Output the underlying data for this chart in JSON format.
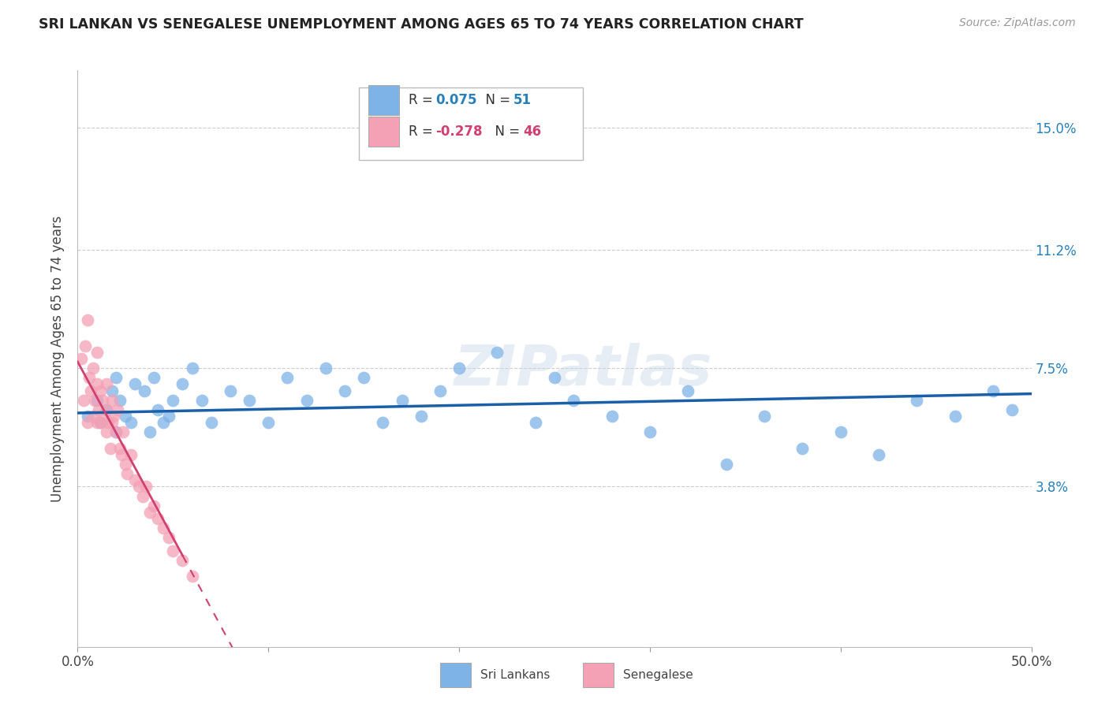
{
  "title": "SRI LANKAN VS SENEGALESE UNEMPLOYMENT AMONG AGES 65 TO 74 YEARS CORRELATION CHART",
  "source": "Source: ZipAtlas.com",
  "ylabel": "Unemployment Among Ages 65 to 74 years",
  "ytick_labels": [
    "15.0%",
    "11.2%",
    "7.5%",
    "3.8%"
  ],
  "ytick_values": [
    0.15,
    0.112,
    0.075,
    0.038
  ],
  "xlim": [
    0.0,
    0.5
  ],
  "ylim": [
    -0.012,
    0.168
  ],
  "background_color": "#ffffff",
  "grid_color": "#cccccc",
  "watermark": "ZIPatlas",
  "sri_lanka_color": "#7eb3e8",
  "senegal_color": "#f4a0b5",
  "sri_lanka_line_color": "#1a5fa8",
  "senegal_line_color": "#d04070",
  "legend_R_sri": "0.075",
  "legend_N_sri": "51",
  "legend_R_sen": "-0.278",
  "legend_N_sen": "46",
  "sri_lanka_x": [
    0.005,
    0.01,
    0.012,
    0.015,
    0.018,
    0.02,
    0.02,
    0.022,
    0.025,
    0.028,
    0.03,
    0.035,
    0.038,
    0.04,
    0.042,
    0.045,
    0.048,
    0.05,
    0.055,
    0.06,
    0.065,
    0.07,
    0.08,
    0.09,
    0.1,
    0.11,
    0.12,
    0.13,
    0.14,
    0.15,
    0.16,
    0.17,
    0.18,
    0.19,
    0.2,
    0.22,
    0.24,
    0.25,
    0.26,
    0.28,
    0.3,
    0.32,
    0.34,
    0.36,
    0.38,
    0.4,
    0.42,
    0.44,
    0.46,
    0.48,
    0.49
  ],
  "sri_lanka_y": [
    0.06,
    0.065,
    0.058,
    0.062,
    0.068,
    0.055,
    0.072,
    0.065,
    0.06,
    0.058,
    0.07,
    0.068,
    0.055,
    0.072,
    0.062,
    0.058,
    0.06,
    0.065,
    0.07,
    0.075,
    0.065,
    0.058,
    0.068,
    0.065,
    0.058,
    0.072,
    0.065,
    0.075,
    0.068,
    0.072,
    0.058,
    0.065,
    0.06,
    0.068,
    0.075,
    0.08,
    0.058,
    0.072,
    0.065,
    0.06,
    0.055,
    0.068,
    0.045,
    0.06,
    0.05,
    0.055,
    0.048,
    0.065,
    0.06,
    0.068,
    0.062
  ],
  "senegal_x": [
    0.002,
    0.003,
    0.004,
    0.005,
    0.005,
    0.006,
    0.007,
    0.008,
    0.008,
    0.009,
    0.01,
    0.01,
    0.01,
    0.011,
    0.012,
    0.012,
    0.013,
    0.014,
    0.015,
    0.015,
    0.015,
    0.016,
    0.017,
    0.018,
    0.018,
    0.019,
    0.02,
    0.021,
    0.022,
    0.023,
    0.024,
    0.025,
    0.026,
    0.028,
    0.03,
    0.032,
    0.034,
    0.036,
    0.038,
    0.04,
    0.042,
    0.045,
    0.048,
    0.05,
    0.055,
    0.06
  ],
  "senegal_y": [
    0.078,
    0.065,
    0.082,
    0.058,
    0.09,
    0.072,
    0.068,
    0.06,
    0.075,
    0.065,
    0.07,
    0.058,
    0.08,
    0.062,
    0.068,
    0.058,
    0.065,
    0.06,
    0.055,
    0.07,
    0.062,
    0.058,
    0.05,
    0.058,
    0.065,
    0.06,
    0.055,
    0.062,
    0.05,
    0.048,
    0.055,
    0.045,
    0.042,
    0.048,
    0.04,
    0.038,
    0.035,
    0.038,
    0.03,
    0.032,
    0.028,
    0.025,
    0.022,
    0.018,
    0.015,
    0.01
  ]
}
